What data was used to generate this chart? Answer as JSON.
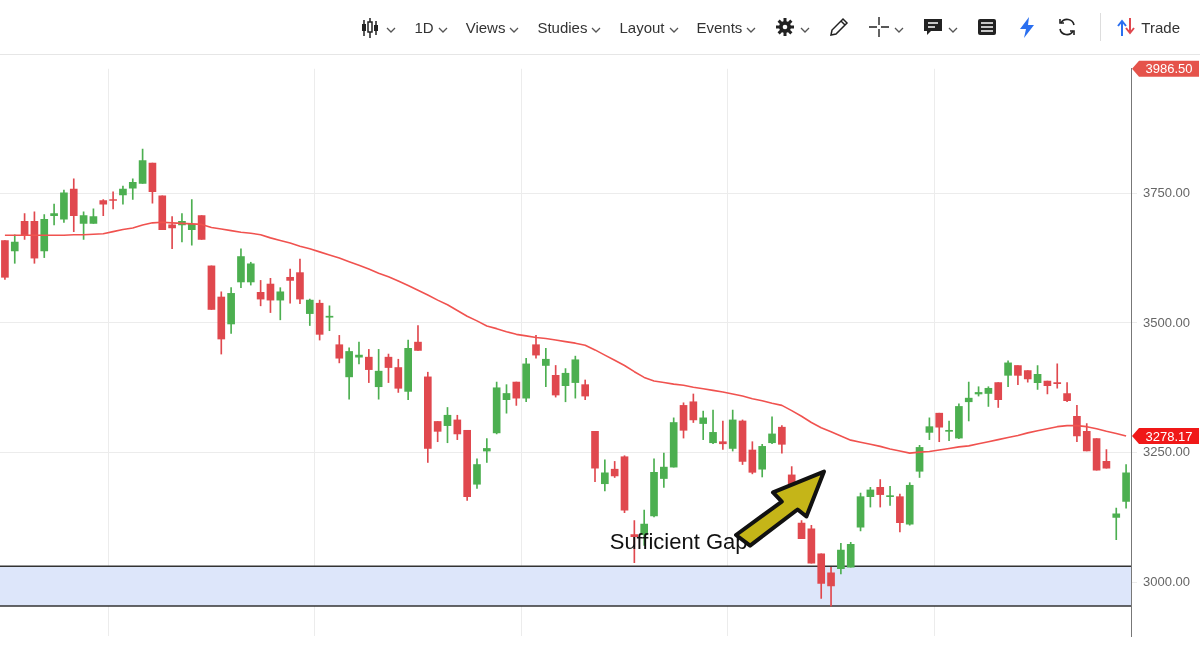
{
  "chart_data": {
    "type": "candlestick",
    "categories": [
      null,
      null,
      null,
      null,
      null,
      null,
      null,
      null,
      null,
      null,
      null,
      null,
      null,
      null,
      null,
      null,
      null,
      null,
      null,
      null,
      null,
      null,
      null,
      null,
      null,
      null,
      null,
      null,
      null,
      null,
      null,
      null,
      null,
      null,
      null,
      null,
      null,
      null,
      null,
      null,
      null,
      null,
      null,
      null,
      null,
      null,
      null,
      null,
      null,
      null,
      null,
      null,
      null,
      null,
      null,
      null,
      null,
      null,
      null,
      null,
      null,
      null,
      null,
      null,
      null,
      null,
      null,
      null,
      null,
      null,
      null,
      null,
      null,
      null,
      null,
      null,
      null,
      null,
      null,
      null,
      null,
      null,
      null,
      null,
      null,
      null,
      null,
      null,
      null,
      null,
      null,
      null,
      null,
      null,
      null,
      null,
      null,
      null,
      null,
      null,
      null,
      null,
      null,
      null,
      null,
      null,
      null,
      null,
      null,
      null,
      null,
      null,
      null,
      null,
      null
    ],
    "ohlc": [
      [
        3659,
        3659,
        3584,
        3588
      ],
      [
        3639,
        3670,
        3615,
        3656
      ],
      [
        3696,
        3711,
        3661,
        3669
      ],
      [
        3696,
        3714,
        3615,
        3625
      ],
      [
        3639,
        3709,
        3626,
        3700
      ],
      [
        3707,
        3729,
        3689,
        3711
      ],
      [
        3700,
        3756,
        3694,
        3751
      ],
      [
        3758,
        3778,
        3676,
        3707
      ],
      [
        3692,
        3714,
        3661,
        3707
      ],
      [
        3692,
        3720,
        3692,
        3705
      ],
      [
        3736,
        3738,
        3707,
        3729
      ],
      [
        3738,
        3753,
        3720,
        3736
      ],
      [
        3747,
        3764,
        3729,
        3758
      ],
      [
        3760,
        3778,
        3738,
        3771
      ],
      [
        3769,
        3835,
        3769,
        3813
      ],
      [
        3808,
        3808,
        3731,
        3753
      ],
      [
        3745,
        3745,
        3680,
        3680
      ],
      [
        3689,
        3705,
        3643,
        3683
      ],
      [
        3689,
        3711,
        3656,
        3696
      ],
      [
        3680,
        3738,
        3650,
        3690
      ],
      [
        3707,
        3707,
        3661,
        3661
      ],
      [
        3610,
        3610,
        3526,
        3526
      ],
      [
        3550,
        3560,
        3440,
        3469
      ],
      [
        3498,
        3568,
        3480,
        3557
      ],
      [
        3579,
        3643,
        3568,
        3628
      ],
      [
        3579,
        3617,
        3573,
        3614
      ],
      [
        3559,
        3582,
        3533,
        3546
      ],
      [
        3575,
        3586,
        3520,
        3544
      ],
      [
        3544,
        3568,
        3506,
        3560
      ],
      [
        3588,
        3604,
        3538,
        3582
      ],
      [
        3597,
        3623,
        3537,
        3546
      ],
      [
        3518,
        3546,
        3495,
        3544
      ],
      [
        3538,
        3544,
        3467,
        3478
      ],
      [
        3511,
        3533,
        3485,
        3513
      ],
      [
        3458,
        3476,
        3423,
        3432
      ],
      [
        3396,
        3452,
        3353,
        3445
      ],
      [
        3434,
        3463,
        3421,
        3438
      ],
      [
        3434,
        3449,
        3385,
        3410
      ],
      [
        3377,
        3449,
        3353,
        3407
      ],
      [
        3434,
        3440,
        3385,
        3414
      ],
      [
        3414,
        3430,
        3366,
        3374
      ],
      [
        3368,
        3467,
        3352,
        3451
      ],
      [
        3463,
        3495,
        3447,
        3447
      ],
      [
        3396,
        3405,
        3231,
        3258
      ],
      [
        3310,
        3310,
        3271,
        3291
      ],
      [
        3302,
        3337,
        3269,
        3322
      ],
      [
        3313,
        3322,
        3275,
        3286
      ],
      [
        3293,
        3293,
        3158,
        3165
      ],
      [
        3189,
        3238,
        3181,
        3227
      ],
      [
        3253,
        3277,
        3231,
        3258
      ],
      [
        3288,
        3386,
        3286,
        3375
      ],
      [
        3352,
        3381,
        3326,
        3364
      ],
      [
        3386,
        3386,
        3341,
        3355
      ],
      [
        3355,
        3432,
        3348,
        3421
      ],
      [
        3458,
        3476,
        3432,
        3438
      ],
      [
        3418,
        3451,
        3377,
        3430
      ],
      [
        3399,
        3418,
        3357,
        3361
      ],
      [
        3379,
        3412,
        3348,
        3403
      ],
      [
        3385,
        3436,
        3355,
        3429
      ],
      [
        3381,
        3390,
        3352,
        3359
      ],
      [
        3291,
        3291,
        3194,
        3220
      ],
      [
        3190,
        3236,
        3176,
        3211
      ],
      [
        3218,
        3233,
        3202,
        3205
      ],
      [
        3242,
        3244,
        3134,
        3139
      ],
      [
        3092,
        3119,
        3038,
        3088
      ],
      [
        3092,
        3139,
        3071,
        3112
      ],
      [
        3128,
        3238,
        3126,
        3212
      ],
      [
        3200,
        3249,
        3183,
        3222
      ],
      [
        3222,
        3317,
        3222,
        3308
      ],
      [
        3341,
        3346,
        3278,
        3293
      ],
      [
        3348,
        3363,
        3308,
        3313
      ],
      [
        3306,
        3330,
        3275,
        3317
      ],
      [
        3269,
        3332,
        3267,
        3289
      ],
      [
        3271,
        3311,
        3256,
        3267
      ],
      [
        3258,
        3332,
        3253,
        3313
      ],
      [
        3311,
        3313,
        3227,
        3233
      ],
      [
        3255,
        3271,
        3209,
        3212
      ],
      [
        3218,
        3266,
        3203,
        3262
      ],
      [
        3269,
        3319,
        3267,
        3286
      ],
      [
        3299,
        3302,
        3249,
        3266
      ],
      [
        3207,
        3223,
        3189,
        3189
      ],
      [
        3114,
        3119,
        3084,
        3084
      ],
      [
        3103,
        3110,
        3037,
        3037
      ],
      [
        3055,
        3055,
        2969,
        2998
      ],
      [
        3018,
        3029,
        2954,
        2993
      ],
      [
        3026,
        3075,
        3016,
        3062
      ],
      [
        3029,
        3077,
        3029,
        3073
      ],
      [
        3106,
        3172,
        3099,
        3165
      ],
      [
        3165,
        3183,
        3145,
        3178
      ],
      [
        3183,
        3198,
        3145,
        3169
      ],
      [
        3165,
        3185,
        3148,
        3167
      ],
      [
        3165,
        3170,
        3097,
        3115
      ],
      [
        3112,
        3192,
        3110,
        3187
      ],
      [
        3214,
        3264,
        3202,
        3260
      ],
      [
        3289,
        3317,
        3275,
        3300
      ],
      [
        3326,
        3326,
        3271,
        3299
      ],
      [
        3291,
        3311,
        3273,
        3293
      ],
      [
        3278,
        3344,
        3277,
        3339
      ],
      [
        3348,
        3386,
        3311,
        3355
      ],
      [
        3363,
        3377,
        3359,
        3366
      ],
      [
        3364,
        3377,
        3339,
        3374
      ],
      [
        3385,
        3385,
        3337,
        3352
      ],
      [
        3399,
        3427,
        3377,
        3423
      ],
      [
        3418,
        3418,
        3381,
        3399
      ],
      [
        3408,
        3408,
        3386,
        3392
      ],
      [
        3385,
        3418,
        3372,
        3401
      ],
      [
        3388,
        3388,
        3363,
        3379
      ],
      [
        3385,
        3421,
        3374,
        3383
      ],
      [
        3364,
        3385,
        3348,
        3350
      ],
      [
        3320,
        3341,
        3271,
        3282
      ],
      [
        3291,
        3306,
        3253,
        3253
      ],
      [
        3277,
        3277,
        3216,
        3216
      ],
      [
        3233,
        3256,
        3220,
        3220
      ],
      [
        3125,
        3143,
        3082,
        3132
      ],
      [
        3156,
        3227,
        3143,
        3211
      ]
    ],
    "colors": [
      "#e0484e",
      "#4caf50",
      "#e0484e",
      "#e0484e",
      "#4caf50",
      "#4caf50",
      "#4caf50",
      "#e0484e",
      "#4caf50",
      "#4caf50",
      "#e0484e",
      "#e0484e",
      "#4caf50",
      "#4caf50",
      "#4caf50",
      "#e0484e",
      "#e0484e",
      "#e0484e",
      "#4caf50",
      "#4caf50",
      "#e0484e",
      "#e0484e",
      "#e0484e",
      "#4caf50",
      "#4caf50",
      "#4caf50",
      "#e0484e",
      "#e0484e",
      "#4caf50",
      "#e0484e",
      "#e0484e",
      "#4caf50",
      "#e0484e",
      "#4caf50",
      "#e0484e",
      "#4caf50",
      "#4caf50",
      "#e0484e",
      "#4caf50",
      "#e0484e",
      "#e0484e",
      "#4caf50",
      "#e0484e",
      "#e0484e",
      "#e0484e",
      "#4caf50",
      "#e0484e",
      "#e0484e",
      "#4caf50",
      "#4caf50",
      "#4caf50",
      "#4caf50",
      "#e0484e",
      "#4caf50",
      "#e0484e",
      "#4caf50",
      "#e0484e",
      "#4caf50",
      "#4caf50",
      "#e0484e",
      "#e0484e",
      "#4caf50",
      "#e0484e",
      "#e0484e",
      "#e0484e",
      "#4caf50",
      "#4caf50",
      "#4caf50",
      "#4caf50",
      "#e0484e",
      "#e0484e",
      "#4caf50",
      "#4caf50",
      "#e0484e",
      "#4caf50",
      "#e0484e",
      "#e0484e",
      "#4caf50",
      "#4caf50",
      "#e0484e",
      "#e0484e",
      "#e0484e",
      "#e0484e",
      "#e0484e",
      "#e0484e",
      "#4caf50",
      "#4caf50",
      "#4caf50",
      "#4caf50",
      "#e0484e",
      "#4caf50",
      "#e0484e",
      "#4caf50",
      "#4caf50",
      "#4caf50",
      "#e0484e",
      "#4caf50",
      "#4caf50",
      "#4caf50",
      "#4caf50",
      "#4caf50",
      "#e0484e",
      "#4caf50",
      "#e0484e",
      "#e0484e",
      "#4caf50",
      "#e0484e",
      "#e0484e",
      "#e0484e",
      "#e0484e",
      "#e0484e",
      "#e0484e",
      "#e0484e",
      "#4caf50",
      "#4caf50"
    ],
    "series": [
      {
        "type": "line",
        "color": "#f0524f",
        "values": [
          3669,
          3669,
          3669,
          3669,
          3669,
          3669,
          3669,
          3670,
          3670,
          3671,
          3672,
          3676,
          3680,
          3683,
          3689,
          3693,
          3694,
          3693,
          3692,
          3691,
          3690,
          3684,
          3681,
          3678,
          3675,
          3673,
          3670,
          3664,
          3659,
          3654,
          3648,
          3643,
          3637,
          3631,
          3625,
          3618,
          3611,
          3604,
          3596,
          3589,
          3581,
          3572,
          3563,
          3554,
          3544,
          3535,
          3524,
          3513,
          3504,
          3494,
          3489,
          3483,
          3478,
          3475,
          3472,
          3470,
          3467,
          3464,
          3461,
          3457,
          3448,
          3438,
          3428,
          3418,
          3406,
          3395,
          3388,
          3385,
          3382,
          3380,
          3376,
          3373,
          3370,
          3367,
          3363,
          3359,
          3354,
          3350,
          3345,
          3341,
          3331,
          3320,
          3308,
          3298,
          3290,
          3282,
          3274,
          3270,
          3266,
          3262,
          3257,
          3253,
          3249,
          3251,
          3252,
          3255,
          3258,
          3261,
          3263,
          3267,
          3271,
          3275,
          3279,
          3283,
          3288,
          3292,
          3296,
          3300,
          3302,
          3302,
          3300,
          3296,
          3291,
          3287,
          3282
        ]
      }
    ],
    "ylim": [
      2896,
      3990
    ],
    "yticks": [
      {
        "value": 3000,
        "label": "3000.00"
      },
      {
        "value": 3250,
        "label": "3250.00"
      },
      {
        "value": 3500,
        "label": "3500.00"
      },
      {
        "value": 3750,
        "label": "3750.00"
      }
    ],
    "grid": true,
    "tick_labels": "y",
    "bands": [
      {
        "axis": "y",
        "from": 2954,
        "to": 3031,
        "color": "#dde6fa"
      }
    ],
    "ref_lines": [
      {
        "axis": "y",
        "value": 3031,
        "color": "#333333"
      },
      {
        "axis": "y",
        "value": 2954,
        "color": "#333333"
      }
    ],
    "annotations": [
      "Sufficient Gap",
      "1D",
      "Views",
      "Studies",
      "Layout",
      "Events",
      "Trade",
      "3986.50",
      "3278.17"
    ]
  }
}
